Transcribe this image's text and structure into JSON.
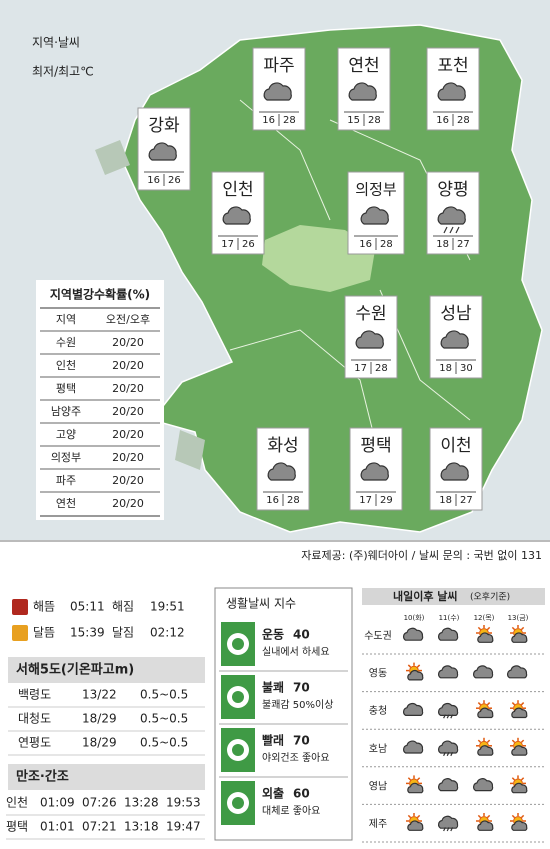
{
  "legend_box": {
    "line1": "지역·날씨",
    "line2": "최저/최고℃"
  },
  "cities": [
    {
      "name": "파주",
      "low": 16,
      "high": 28
    },
    {
      "name": "연천",
      "low": 15,
      "high": 28
    },
    {
      "name": "포천",
      "low": 16,
      "high": 28
    },
    {
      "name": "강화",
      "low": 16,
      "high": 26
    },
    {
      "name": "인천",
      "low": 17,
      "high": 26
    },
    {
      "name": "의정부",
      "low": 16,
      "high": 28
    },
    {
      "name": "양평",
      "low": 18,
      "high": 27
    },
    {
      "name": "수원",
      "low": 17,
      "high": 28
    },
    {
      "name": "성남",
      "low": 18,
      "high": 30
    },
    {
      "name": "화성",
      "low": 16,
      "high": 28
    },
    {
      "name": "평택",
      "low": 17,
      "high": 29
    },
    {
      "name": "이천",
      "low": 18,
      "high": 27
    }
  ],
  "precip_table": {
    "title": "지역별강수확률(%)",
    "header": [
      "지역",
      "오전/오후"
    ],
    "rows": [
      [
        "수원",
        "20/20"
      ],
      [
        "인천",
        "20/20"
      ],
      [
        "평택",
        "20/20"
      ],
      [
        "남양주",
        "20/20"
      ],
      [
        "고양",
        "20/20"
      ],
      [
        "의정부",
        "20/20"
      ],
      [
        "파주",
        "20/20"
      ],
      [
        "연천",
        "20/20"
      ]
    ]
  },
  "source": "자료제공: (주)웨더아이 / 날씨 문의 : 국번 없이 131",
  "sun_moon": [
    [
      "해뜸",
      "05:11",
      "해짐",
      "19:51"
    ],
    [
      "달뜸",
      "15:39",
      "달짐",
      "02:12"
    ]
  ],
  "islands": {
    "title": "서해5도(기온파고m)",
    "rows": [
      [
        "백령도",
        "13/22",
        "0.5~0.5"
      ],
      [
        "대청도",
        "18/29",
        "0.5~0.5"
      ],
      [
        "연평도",
        "18/29",
        "0.5~0.5"
      ]
    ]
  },
  "tides": {
    "title": "만조·간조",
    "rows": [
      [
        "인천",
        "01:09",
        "07:26",
        "13:28",
        "19:53"
      ],
      [
        "평택",
        "01:01",
        "07:21",
        "13:18",
        "19:47"
      ]
    ]
  },
  "life_index": {
    "title": "생활날씨 지수",
    "items": [
      {
        "name": "운동",
        "value": 40,
        "note": "실내에서 하세요"
      },
      {
        "name": "불쾌",
        "value": 70,
        "note": "불쾌감 50%이상"
      },
      {
        "name": "빨래",
        "value": 70,
        "note": "야외건조 좋아요"
      },
      {
        "name": "외출",
        "value": 60,
        "note": "대체로 좋아요"
      }
    ]
  },
  "forecast": {
    "title": "내일이후 날씨",
    "subtitle": "(오후기준)",
    "days": [
      "10(화)",
      "11(수)",
      "12(목)",
      "13(금)"
    ],
    "regions": [
      "수도권",
      "영동",
      "충청",
      "호남",
      "영남",
      "제주"
    ]
  }
}
